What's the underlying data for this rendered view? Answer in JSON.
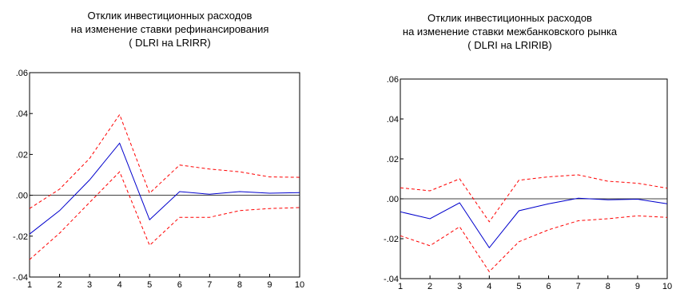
{
  "chart_data": [
    {
      "type": "line",
      "title_lines": [
        "Отклик инвестиционных расходов",
        "на изменение ставки рефинансирования",
        "( DLRI на LRIRR)"
      ],
      "x": [
        1,
        2,
        3,
        4,
        5,
        6,
        7,
        8,
        9,
        10
      ],
      "x_tick_labels": [
        "1",
        "2",
        "3",
        "4",
        "5",
        "6",
        "7",
        "8",
        "9",
        "10"
      ],
      "ylim": [
        -0.04,
        0.06
      ],
      "y_tick_values": [
        -0.04,
        -0.02,
        0.0,
        0.02,
        0.04,
        0.06
      ],
      "y_tick_labels": [
        "-.04",
        "-.02",
        ".00",
        ".02",
        ".04",
        ".06"
      ],
      "zero_line": true,
      "grid": false,
      "series": [
        {
          "style": "solid",
          "color": "#0000cc",
          "values": [
            -0.019,
            -0.0075,
            0.0075,
            0.0255,
            -0.012,
            0.0018,
            0.0005,
            0.0018,
            0.001,
            0.0013
          ]
        },
        {
          "style": "dashed",
          "color": "#ff0000",
          "values": [
            -0.0065,
            0.003,
            0.018,
            0.0395,
            0.001,
            0.0148,
            0.0128,
            0.0115,
            0.009,
            0.0088
          ]
        },
        {
          "style": "dashed",
          "color": "#ff0000",
          "values": [
            -0.0315,
            -0.0185,
            -0.0035,
            0.0115,
            -0.0245,
            -0.0108,
            -0.0108,
            -0.0075,
            -0.0065,
            -0.006
          ]
        }
      ]
    },
    {
      "type": "line",
      "title_lines": [
        "Отклик инвестиционных расходов",
        "на изменение ставки межбанковского рынка",
        "( DLRI на LRIRIB)"
      ],
      "x": [
        1,
        2,
        3,
        4,
        5,
        6,
        7,
        8,
        9,
        10
      ],
      "x_tick_labels": [
        "1",
        "2",
        "3",
        "4",
        "5",
        "6",
        "7",
        "8",
        "9",
        "10"
      ],
      "ylim": [
        -0.04,
        0.06
      ],
      "y_tick_values": [
        -0.04,
        -0.02,
        0.0,
        0.02,
        0.04,
        0.06
      ],
      "y_tick_labels": [
        "-.04",
        "-.02",
        ".00",
        ".02",
        ".04",
        ".06"
      ],
      "zero_line": true,
      "grid": false,
      "series": [
        {
          "style": "solid",
          "color": "#0000cc",
          "values": [
            -0.0065,
            -0.01,
            -0.002,
            -0.0245,
            -0.006,
            -0.0025,
            0.0003,
            -0.0005,
            -0.0002,
            -0.0025
          ]
        },
        {
          "style": "dashed",
          "color": "#ff0000",
          "values": [
            0.0055,
            0.004,
            0.01,
            -0.0115,
            0.0093,
            0.011,
            0.012,
            0.0088,
            0.0078,
            0.0053
          ]
        },
        {
          "style": "dashed",
          "color": "#ff0000",
          "values": [
            -0.0185,
            -0.0235,
            -0.014,
            -0.0365,
            -0.0215,
            -0.0155,
            -0.011,
            -0.01,
            -0.0085,
            -0.0093
          ]
        }
      ]
    }
  ]
}
